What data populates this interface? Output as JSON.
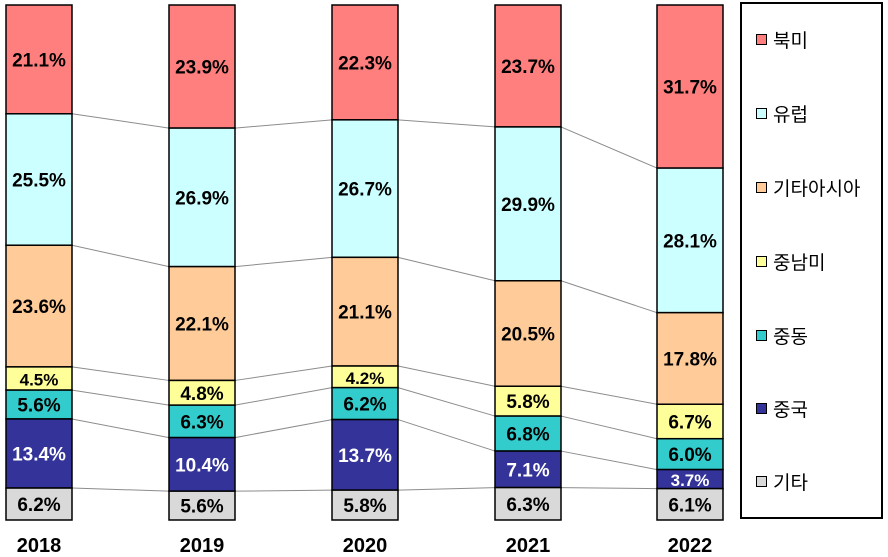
{
  "chart_data": {
    "type": "bar",
    "stacked": true,
    "percent": true,
    "categories": [
      "2018",
      "2019",
      "2020",
      "2021",
      "2022"
    ],
    "series": [
      {
        "name": "북미",
        "color": "#ff7f7f",
        "values": [
          21.1,
          23.9,
          22.3,
          23.7,
          31.7
        ]
      },
      {
        "name": "유럽",
        "color": "#ccffff",
        "values": [
          25.5,
          26.9,
          26.7,
          29.9,
          28.1
        ]
      },
      {
        "name": "기타아시아",
        "color": "#ffcc99",
        "values": [
          23.6,
          22.1,
          21.1,
          20.5,
          17.8
        ]
      },
      {
        "name": "중남미",
        "color": "#ffff99",
        "values": [
          4.5,
          4.8,
          4.2,
          5.8,
          6.7
        ]
      },
      {
        "name": "중동",
        "color": "#33cccc",
        "values": [
          5.6,
          6.3,
          6.2,
          6.8,
          6.0
        ]
      },
      {
        "name": "중국",
        "color": "#333399",
        "values": [
          13.4,
          10.4,
          13.7,
          7.1,
          3.7
        ]
      },
      {
        "name": "기타",
        "color": "#d9d9d9",
        "values": [
          6.2,
          5.6,
          5.8,
          6.3,
          6.1
        ]
      }
    ],
    "legend_position": "right",
    "series_lines": true,
    "grid": false
  },
  "legend": {
    "items": [
      {
        "label": "북미",
        "color": "#ff7f7f"
      },
      {
        "label": "유럽",
        "color": "#ccffff"
      },
      {
        "label": "기타아시아",
        "color": "#ffcc99"
      },
      {
        "label": "중남미",
        "color": "#ffff99"
      },
      {
        "label": "중동",
        "color": "#33cccc"
      },
      {
        "label": "중국",
        "color": "#333399"
      },
      {
        "label": "기타",
        "color": "#d9d9d9"
      }
    ]
  }
}
